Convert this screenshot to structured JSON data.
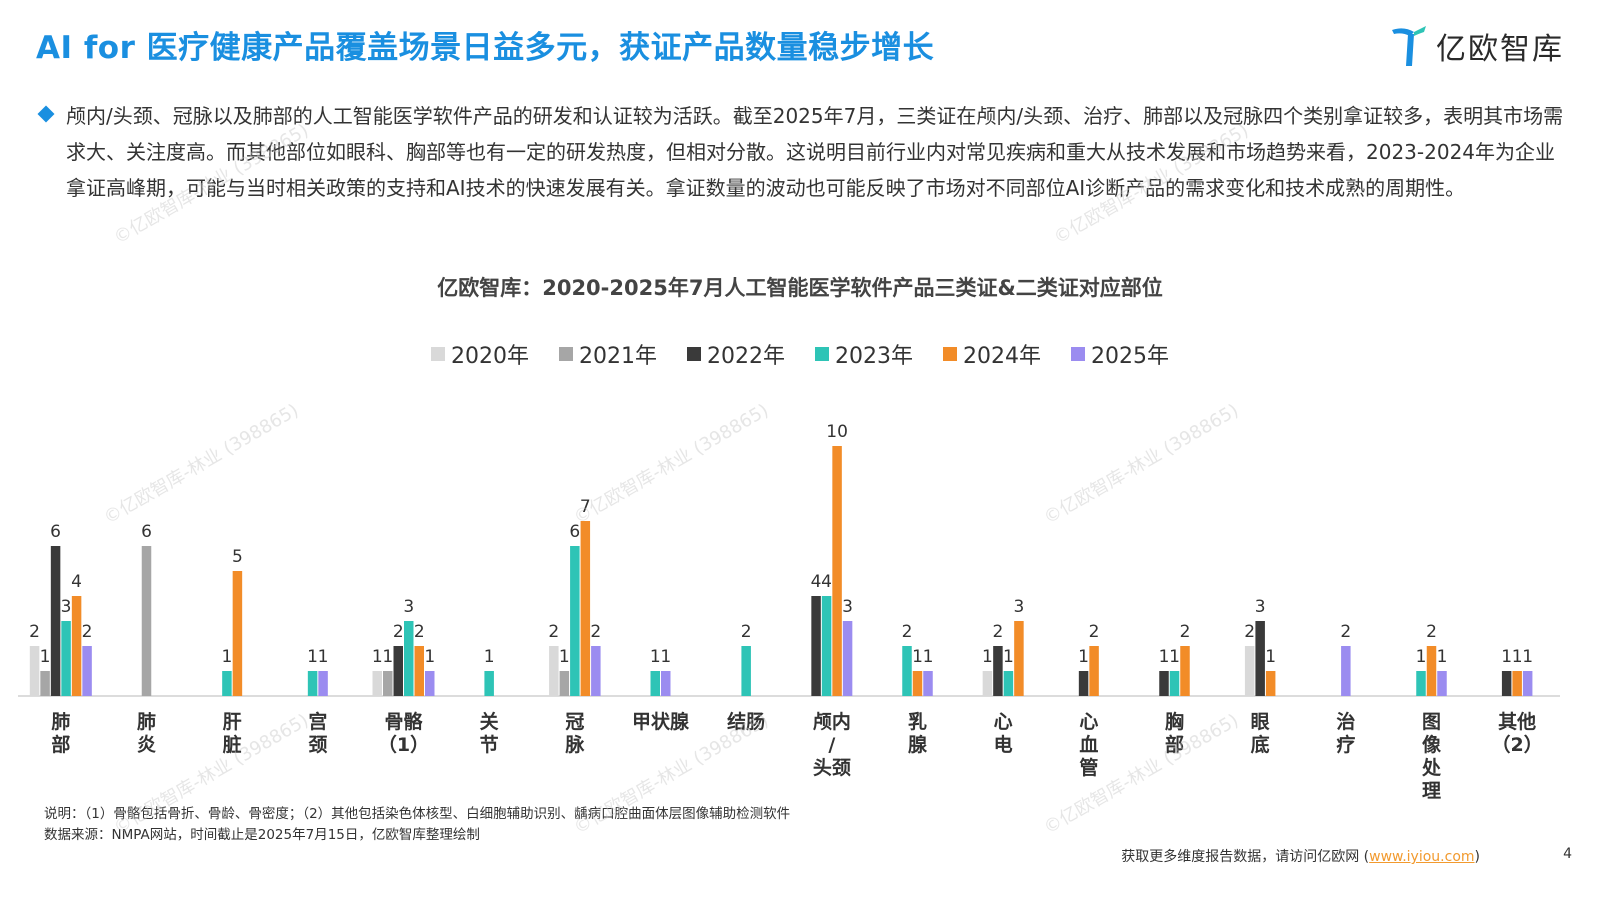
{
  "header": {
    "title": "AI for 医疗健康产品覆盖场景日益多元，获证产品数量稳步增长",
    "logo_text": "亿欧智库"
  },
  "summary": {
    "text": "颅内/头颈、冠脉以及肺部的人工智能医学软件产品的研发和认证较为活跃。截至2025年7月，三类证在颅内/头颈、治疗、肺部以及冠脉四个类别拿证较多，表明其市场需求大、关注度高。而其他部位如眼科、胸部等也有一定的研发热度，但相对分散。这说明目前行业内对常见疾病和重大从技术发展和市场趋势来看，2023-2024年为企业拿证高峰期，可能与当时相关政策的支持和AI技术的快速发展有关。拿证数量的波动也可能反映了市场对不同部位AI诊断产品的需求变化和技术成熟的周期性。"
  },
  "chart_data": {
    "type": "bar",
    "title": "亿欧智库：2020-2025年7月人工智能医学软件产品三类证&二类证对应部位",
    "categories": [
      "肺部",
      "肺炎",
      "肝脏",
      "宫颈",
      "骨骼（1）",
      "关节",
      "冠脉",
      "甲状腺",
      "结肠",
      "颅内/头颈",
      "乳腺",
      "心电",
      "心血管",
      "胸部",
      "眼底",
      "治疗",
      "图像处理",
      "其他（2）"
    ],
    "category_labels": [
      [
        "肺",
        "部"
      ],
      [
        "肺",
        "炎"
      ],
      [
        "肝",
        "脏"
      ],
      [
        "宫",
        "颈"
      ],
      [
        "骨骼",
        "（1）"
      ],
      [
        "关",
        "节"
      ],
      [
        "冠",
        "脉"
      ],
      [
        "甲状腺"
      ],
      [
        "结肠"
      ],
      [
        "颅内",
        "/",
        "头颈"
      ],
      [
        "乳",
        "腺"
      ],
      [
        "心",
        "电"
      ],
      [
        "心",
        "血",
        "管"
      ],
      [
        "胸",
        "部"
      ],
      [
        "眼",
        "底"
      ],
      [
        "治",
        "疗"
      ],
      [
        "图",
        "像",
        "处",
        "理"
      ],
      [
        "其他",
        "（2）"
      ]
    ],
    "series": [
      {
        "name": "2020年",
        "color": "#d9d9d9",
        "values": [
          2,
          null,
          null,
          null,
          1,
          null,
          2,
          null,
          null,
          null,
          null,
          1,
          null,
          null,
          2,
          null,
          null,
          null
        ]
      },
      {
        "name": "2021年",
        "color": "#a6a6a6",
        "values": [
          1,
          6,
          null,
          null,
          1,
          null,
          1,
          null,
          null,
          null,
          null,
          null,
          null,
          null,
          null,
          null,
          null,
          null
        ]
      },
      {
        "name": "2022年",
        "color": "#3a3a3a",
        "values": [
          6,
          null,
          null,
          null,
          2,
          null,
          null,
          null,
          null,
          4,
          null,
          2,
          1,
          1,
          3,
          null,
          null,
          1
        ]
      },
      {
        "name": "2023年",
        "color": "#2ec4b6",
        "values": [
          3,
          null,
          1,
          1,
          3,
          1,
          6,
          1,
          2,
          4,
          2,
          1,
          null,
          1,
          null,
          null,
          1,
          null
        ]
      },
      {
        "name": "2024年",
        "color": "#f28c28",
        "values": [
          4,
          null,
          5,
          null,
          2,
          null,
          7,
          null,
          null,
          10,
          1,
          3,
          2,
          2,
          1,
          null,
          2,
          1
        ]
      },
      {
        "name": "2025年",
        "color": "#9b8cf0",
        "values": [
          2,
          null,
          null,
          1,
          1,
          null,
          2,
          1,
          null,
          3,
          1,
          null,
          null,
          null,
          null,
          2,
          1,
          1
        ]
      }
    ],
    "legend_position": "top-center",
    "grid": false
  },
  "notes": {
    "line1": "说明：（1）骨骼包括骨折、骨龄、骨密度；（2）其他包括染色体核型、白细胞辅助识别、龋病口腔曲面体层图像辅助检测软件",
    "line2": "数据来源：NMPA网站，时间截止是2025年7月15日，亿欧智库整理绘制"
  },
  "footer": {
    "text": "获取更多维度报告数据，请访问亿欧网 (",
    "link": "www.iyiou.com",
    "close": ")",
    "page": "4"
  },
  "watermark": "©亿欧智库-林业 (398865)"
}
